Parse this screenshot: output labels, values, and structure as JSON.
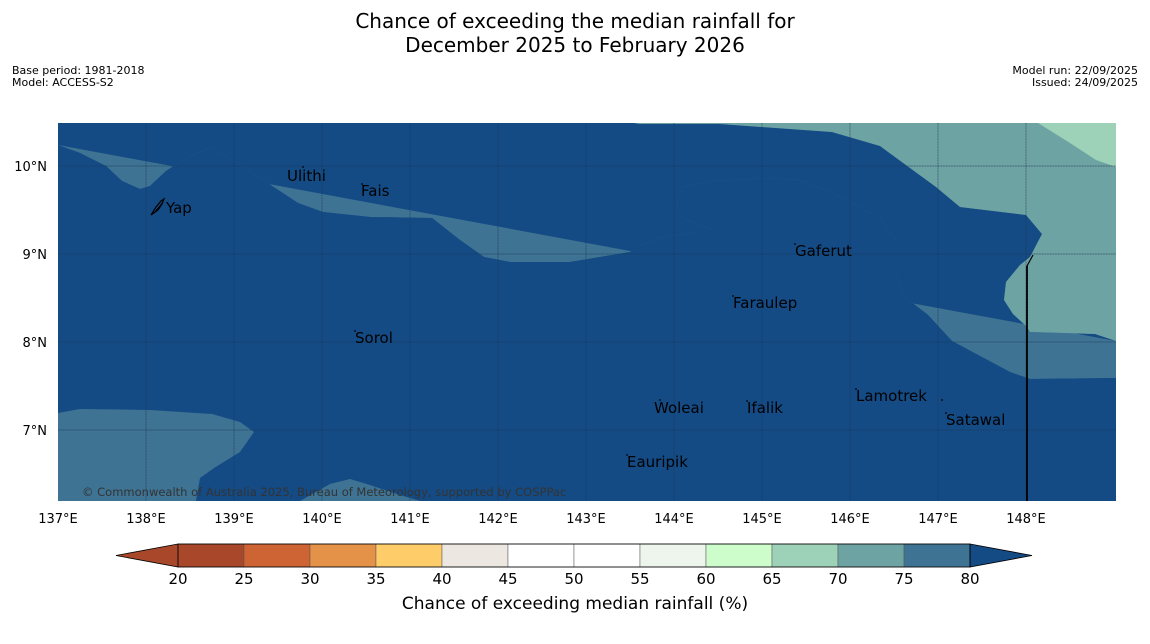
{
  "title": {
    "line1": "Chance of exceeding the median rainfall for",
    "line2": "December 2025 to February 2026"
  },
  "meta": {
    "base_period": "Base period: 1981-2018",
    "model": "Model: ACCESS-S2",
    "model_run": "Model run: 22/09/2025",
    "issued": "Issued: 24/09/2025"
  },
  "map": {
    "lon_labels": [
      "137°E",
      "138°E",
      "139°E",
      "140°E",
      "141°E",
      "142°E",
      "143°E",
      "144°E",
      "145°E",
      "146°E",
      "147°E",
      "148°E"
    ],
    "lat_labels": [
      "10°N",
      "9°N",
      "8°N",
      "7°N"
    ],
    "places": [
      {
        "name": "Yap"
      },
      {
        "name": "Ulithi"
      },
      {
        "name": "Fais"
      },
      {
        "name": "Gaferut"
      },
      {
        "name": "Faraulep"
      },
      {
        "name": "Sorol"
      },
      {
        "name": "Woleai"
      },
      {
        "name": "Ifalik"
      },
      {
        "name": "Lamotrek"
      },
      {
        "name": "Satawal"
      },
      {
        "name": "Eauripik"
      }
    ],
    "copyright": "© Commonwealth of Australia 2025, Bureau of Meteorology, supported by COSPPac"
  },
  "colorbar": {
    "ticks": [
      "20",
      "25",
      "30",
      "35",
      "40",
      "45",
      "50",
      "55",
      "60",
      "65",
      "70",
      "75",
      "80"
    ],
    "colors": [
      "#a8472a",
      "#ce6333",
      "#e39248",
      "#fecd6a",
      "#ede7e2",
      "#ffffff",
      "#ffffff",
      "#edf5ec",
      "#ccfdcb",
      "#9dd1b8",
      "#6ea3a4",
      "#3e7393",
      "#144b85"
    ],
    "label": "Chance of exceeding median rainfall (%)"
  },
  "colors": {
    "band_80_plus": "#144b85",
    "band_75_80": "#3e7393",
    "band_70_75": "#6ea3a4",
    "band_65_70": "#9dd1b8"
  }
}
